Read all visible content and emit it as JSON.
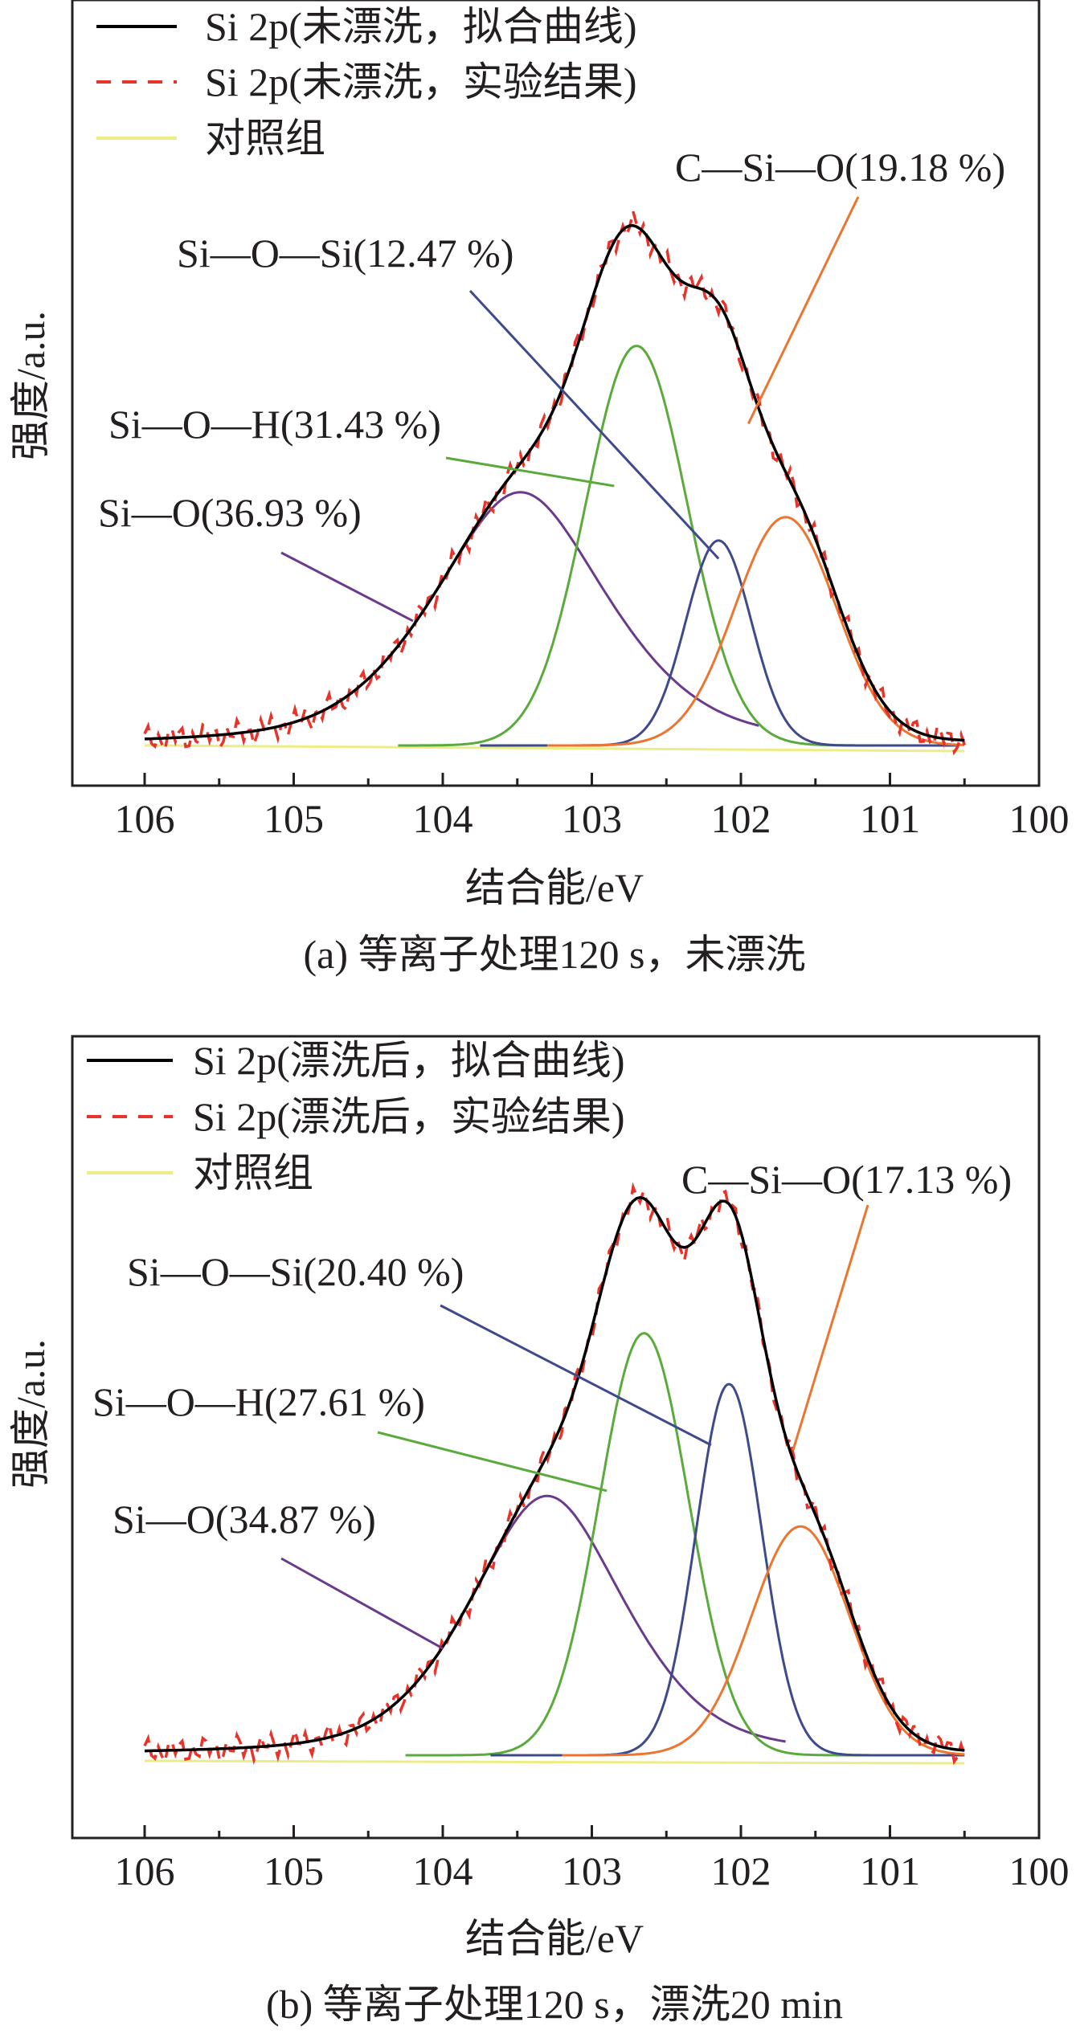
{
  "chart_data": [
    {
      "type": "line",
      "caption": "(a) 等离子处理120 s，未漂洗",
      "xlabel": "结合能/eV",
      "ylabel": "强度/a.u.",
      "xlim": [
        106.5,
        100
      ],
      "x_ticks": [
        106,
        105,
        104,
        103,
        102,
        101,
        100
      ],
      "x_tick_labels": [
        "106",
        "105",
        "104",
        "103",
        "102",
        "101",
        "100"
      ],
      "legend": [
        {
          "label": "Si 2p(未漂洗，拟合曲线)",
          "color": "#000000",
          "style": "solid"
        },
        {
          "label": "Si 2p(未漂洗，实验结果)",
          "color": "#e8332a",
          "style": "dashed"
        },
        {
          "label": "对照组",
          "color": "#eded88",
          "style": "solid"
        }
      ],
      "components": [
        {
          "name": "Si—O(36.93 %)",
          "color": "#6b3a8c",
          "center": 103.48,
          "height": 0.488,
          "width_left": 0.62,
          "width_right": 0.62,
          "tail": 0.45
        },
        {
          "name": "Si—O—H(31.43 %)",
          "color": "#5aaa3c",
          "center": 102.7,
          "height": 0.77,
          "width_left": 0.34,
          "width_right": 0.34,
          "tail": 0
        },
        {
          "name": "Si—O—Si(12.47 %)",
          "color": "#3e4a8c",
          "center": 102.15,
          "height": 0.395,
          "width_left": 0.22,
          "width_right": 0.22,
          "tail": 0
        },
        {
          "name": "C—Si—O(19.18 %)",
          "color": "#ec7530",
          "center": 101.7,
          "height": 0.44,
          "width_left": 0.34,
          "width_right": 0.34,
          "tail": 0
        }
      ],
      "annotations": [
        {
          "text": "C—Si—O(19.18 %)",
          "target_x": 101.95,
          "target_y": 0.62,
          "color": "#ec7530"
        },
        {
          "text": "Si—O—Si(12.47 %)",
          "target_x": 102.15,
          "target_y": 0.36,
          "color": "#3e4a8c"
        },
        {
          "text": "Si—O—H(31.43 %)",
          "target_x": 102.85,
          "target_y": 0.5,
          "color": "#5aaa3c"
        },
        {
          "text": "Si—O(36.93 %)",
          "target_x": 104.2,
          "target_y": 0.24,
          "color": "#6b3a8c"
        }
      ]
    },
    {
      "type": "line",
      "caption": "(b) 等离子处理120 s，漂洗20 min",
      "xlabel": "结合能/eV",
      "ylabel": "强度/a.u.",
      "xlim": [
        106.5,
        100
      ],
      "x_ticks": [
        106,
        105,
        104,
        103,
        102,
        101,
        100
      ],
      "x_tick_labels": [
        "106",
        "105",
        "104",
        "103",
        "102",
        "101",
        "100"
      ],
      "legend": [
        {
          "label": "Si 2p(漂洗后，拟合曲线)",
          "color": "#000000",
          "style": "solid"
        },
        {
          "label": "Si 2p(漂洗后，实验结果)",
          "color": "#e8332a",
          "style": "dashed"
        },
        {
          "label": "对照组",
          "color": "#eded88",
          "style": "solid"
        }
      ],
      "components": [
        {
          "name": "Si—O(34.87 %)",
          "color": "#6b3a8c",
          "center": 103.3,
          "height": 0.51,
          "width_left": 0.55,
          "width_right": 0.55,
          "tail": 0.42
        },
        {
          "name": "Si—O—H(27.61 %)",
          "color": "#5aaa3c",
          "center": 102.65,
          "height": 0.83,
          "width_left": 0.3,
          "width_right": 0.3,
          "tail": 0
        },
        {
          "name": "Si—O—Si(20.40 %)",
          "color": "#3e4a8c",
          "center": 102.08,
          "height": 0.73,
          "width_left": 0.22,
          "width_right": 0.22,
          "tail": 0
        },
        {
          "name": "C—Si—O(17.13 %)",
          "color": "#ec7530",
          "center": 101.6,
          "height": 0.45,
          "width_left": 0.33,
          "width_right": 0.33,
          "tail": 0
        }
      ],
      "annotations": [
        {
          "text": "C—Si—O(17.13 %)",
          "target_x": 101.65,
          "target_y": 0.6,
          "color": "#ec7530"
        },
        {
          "text": "Si—O—Si(20.40 %)",
          "target_x": 102.2,
          "target_y": 0.61,
          "color": "#3e4a8c"
        },
        {
          "text": "Si—O—H(27.61 %)",
          "target_x": 102.9,
          "target_y": 0.52,
          "color": "#5aaa3c"
        },
        {
          "text": "Si—O(34.87 %)",
          "target_x": 104.0,
          "target_y": 0.21,
          "color": "#6b3a8c"
        }
      ]
    }
  ]
}
